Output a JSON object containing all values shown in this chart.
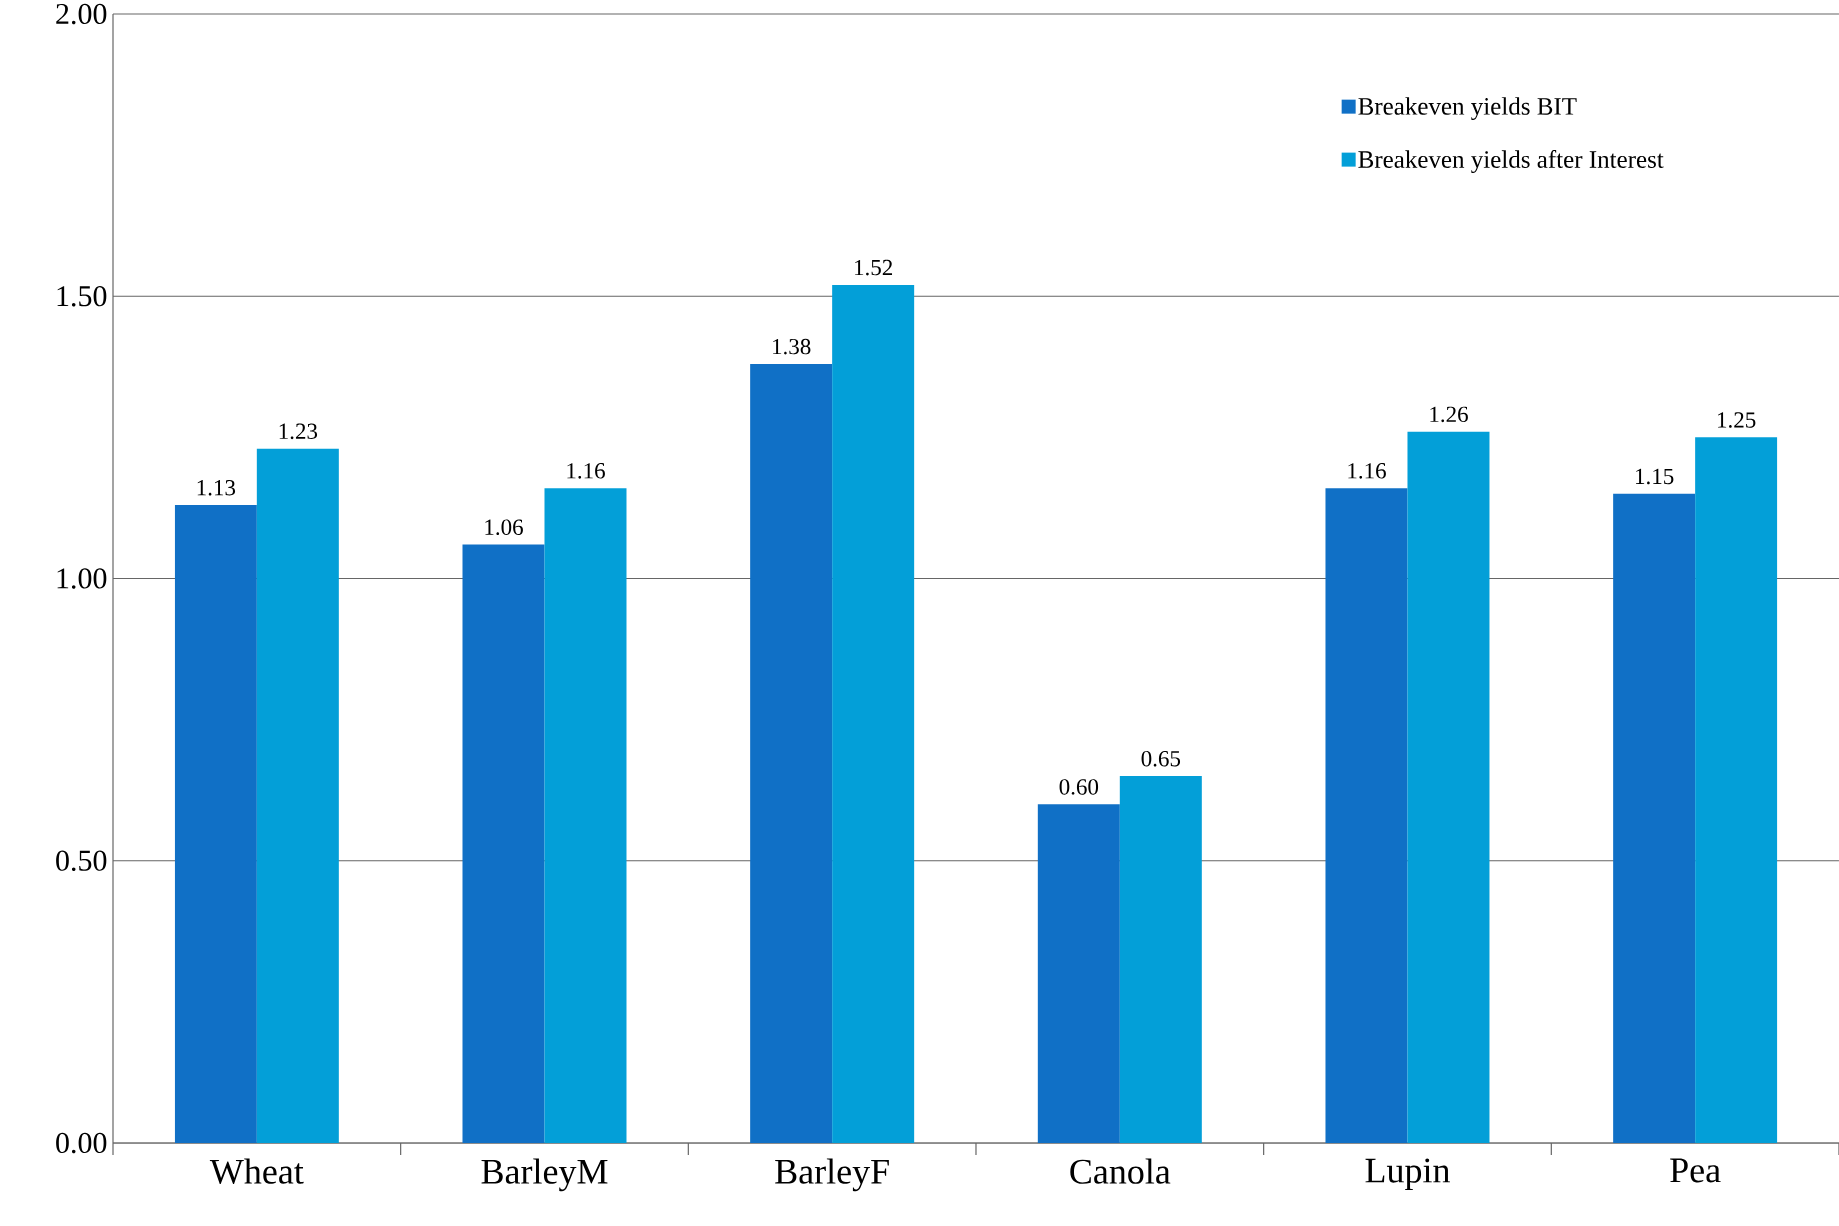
{
  "chart_data": {
    "type": "bar",
    "categories": [
      "Wheat",
      "BarleyM",
      "BarleyF",
      "Canola",
      "Lupin",
      "Pea"
    ],
    "series": [
      {
        "name": "Breakeven yields BIT",
        "color": "#1070c6",
        "values": [
          1.13,
          1.06,
          1.38,
          0.6,
          1.16,
          1.15
        ],
        "value_labels": [
          "1.13",
          "1.06",
          "1.38",
          "0.60",
          "1.16",
          "1.15"
        ]
      },
      {
        "name": "Breakeven yields after Interest",
        "color": "#039fd8",
        "values": [
          1.23,
          1.16,
          1.52,
          0.65,
          1.26,
          1.25
        ],
        "value_labels": [
          "1.23",
          "1.16",
          "1.52",
          "0.65",
          "1.26",
          "1.25"
        ]
      }
    ],
    "ylim": [
      0,
      2
    ],
    "yticks": [
      {
        "value": 0,
        "label": "0.00"
      },
      {
        "value": 0.5,
        "label": "0.50"
      },
      {
        "value": 1,
        "label": "1.00"
      },
      {
        "value": 1.5,
        "label": "1.50"
      },
      {
        "value": 2,
        "label": "2.00"
      }
    ],
    "grid": "y",
    "legend": "top right"
  }
}
